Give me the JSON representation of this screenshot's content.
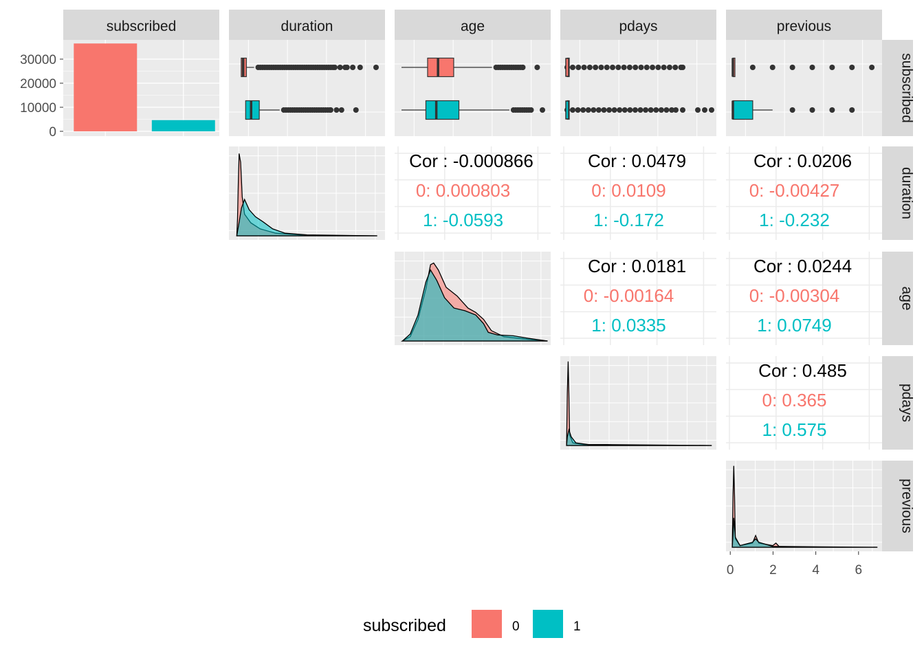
{
  "chart_data": {
    "type": "scatterplot-matrix",
    "variables": [
      "subscribed",
      "duration",
      "age",
      "pdays",
      "previous"
    ],
    "colors": {
      "0": "#F8766D",
      "1": "#00BFC4",
      "panel": "#EBEBEB",
      "strip": "#D9D9D9"
    },
    "legend": {
      "title": "subscribed",
      "position": "bottom",
      "entries": [
        "0",
        "1"
      ]
    },
    "bar_subscribed": {
      "type": "bar",
      "categories": [
        "0",
        "1"
      ],
      "values": [
        36500,
        4650
      ],
      "y_ticks": [
        "30000",
        "20000",
        "10000",
        "0"
      ],
      "ylim": [
        0,
        38000
      ]
    },
    "boxplots_by_subscribed": [
      {
        "variable": "duration",
        "groups": [
          {
            "name": "0",
            "q1": 95,
            "median": 164,
            "q3": 279,
            "whisker_hi": 555,
            "max": 4918
          },
          {
            "name": "1",
            "q1": 253,
            "median": 449,
            "q3": 741,
            "whisker_hi": 1470,
            "max": 4199
          }
        ]
      },
      {
        "variable": "age",
        "groups": [
          {
            "name": "0",
            "q1": 32,
            "median": 38,
            "q3": 47,
            "whisker_min": 17,
            "whisker_hi": 69,
            "max": 95
          },
          {
            "name": "1",
            "q1": 31,
            "median": 37,
            "q3": 50,
            "whisker_min": 17,
            "whisker_hi": 79,
            "max": 98
          }
        ]
      },
      {
        "variable": "pdays",
        "groups": [
          {
            "name": "0",
            "q1": 999,
            "median": 999,
            "q3": 999,
            "outliers_range": [
              0,
              27
            ]
          },
          {
            "name": "1",
            "q1": 999,
            "median": 999,
            "q3": 999,
            "outliers_range": [
              0,
              27
            ]
          }
        ]
      },
      {
        "variable": "previous",
        "groups": [
          {
            "name": "0",
            "q1": 0,
            "median": 0,
            "q3": 0,
            "outliers": [
              1,
              2,
              3,
              4,
              5,
              6,
              7
            ]
          },
          {
            "name": "1",
            "q1": 0,
            "median": 0,
            "q3": 1,
            "whisker_hi": 2,
            "outliers": [
              3,
              4,
              5,
              6
            ]
          }
        ]
      }
    ],
    "correlations": [
      {
        "pair": [
          "duration",
          "age"
        ],
        "cor": "Cor : -0.000866",
        "g0": "0: 0.000803",
        "g1": "1: -0.0593"
      },
      {
        "pair": [
          "duration",
          "pdays"
        ],
        "cor": "Cor : 0.0479",
        "g0": "0: 0.0109",
        "g1": "1: -0.172"
      },
      {
        "pair": [
          "duration",
          "previous"
        ],
        "cor": "Cor : 0.0206",
        "g0": "0: -0.00427",
        "g1": "1: -0.232"
      },
      {
        "pair": [
          "age",
          "pdays"
        ],
        "cor": "Cor : 0.0181",
        "g0": "0: -0.00164",
        "g1": "1: 0.0335"
      },
      {
        "pair": [
          "age",
          "previous"
        ],
        "cor": "Cor : 0.0244",
        "g0": "0: -0.00304",
        "g1": "1: 0.0749"
      },
      {
        "pair": [
          "pdays",
          "previous"
        ],
        "cor": "Cor : 0.485",
        "g0": "0: 0.365",
        "g1": "1: 0.575"
      }
    ],
    "densities": [
      "duration",
      "age",
      "pdays",
      "previous"
    ],
    "previous_x_ticks": [
      "0",
      "2",
      "4",
      "6"
    ],
    "previous_xlim": [
      -0.2,
      7.1
    ]
  }
}
